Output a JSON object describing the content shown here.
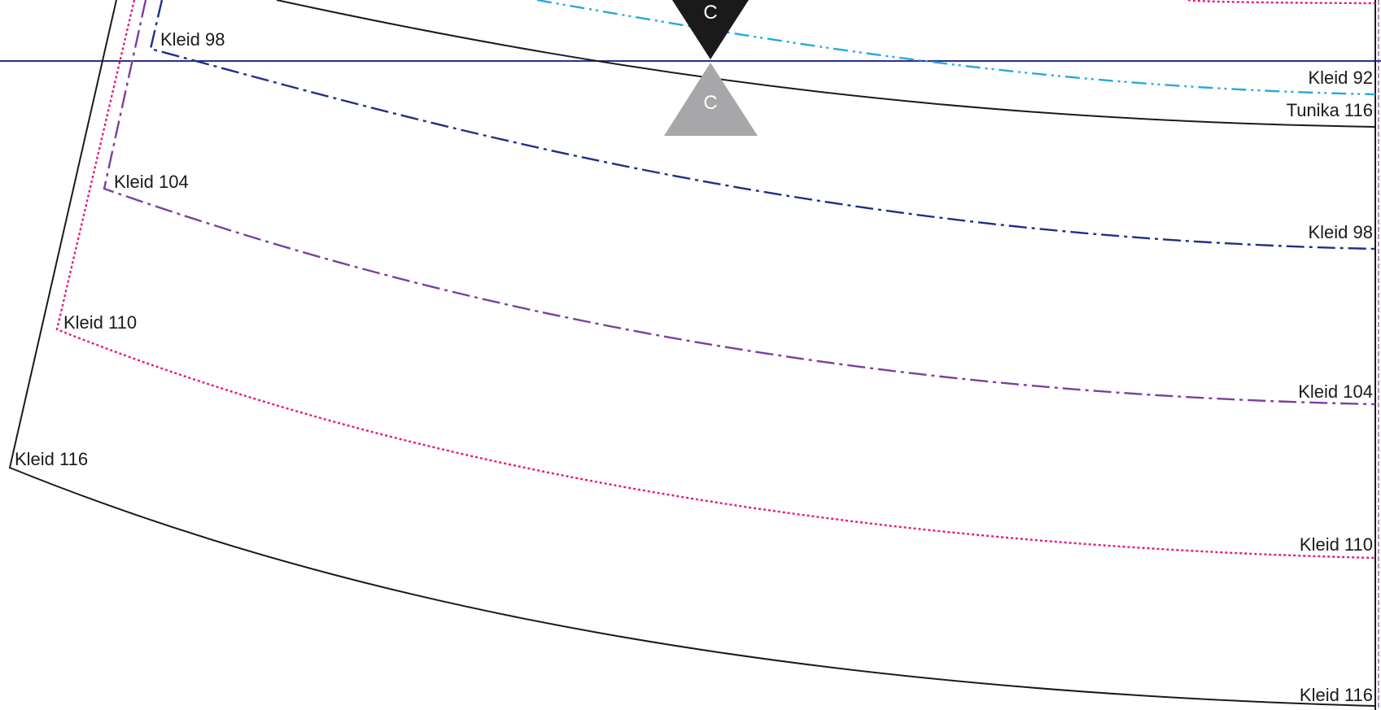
{
  "colors": {
    "background": "#ffffff",
    "kleid_116": "#1a1a1a",
    "tunika_116": "#1a1a1a",
    "kleid_110": "#e6197f",
    "kleid_104": "#7b3fa0",
    "kleid_98": "#1f2f8a",
    "kleid_92": "#29a8e0",
    "guide_line": "#2b2f8f",
    "notch_front": "#1a1a1a",
    "notch_back": "#a7a7a9"
  },
  "labels": {
    "kleid_98_side": "Kleid 98",
    "kleid_104_side": "Kleid 104",
    "kleid_110_side": "Kleid 110",
    "kleid_116_side": "Kleid 116",
    "kleid_92_hem": "Kleid 92",
    "tunika_116_hem": "Tunika 116",
    "kleid_98_hem": "Kleid 98",
    "kleid_104_hem": "Kleid 104",
    "kleid_110_hem": "Kleid 110",
    "kleid_116_hem": "Kleid 116"
  },
  "notches": {
    "front_letter": "C",
    "back_letter": "C"
  },
  "icons": {
    "notch_front": "triangle-down-icon",
    "notch_back": "triangle-up-icon"
  }
}
